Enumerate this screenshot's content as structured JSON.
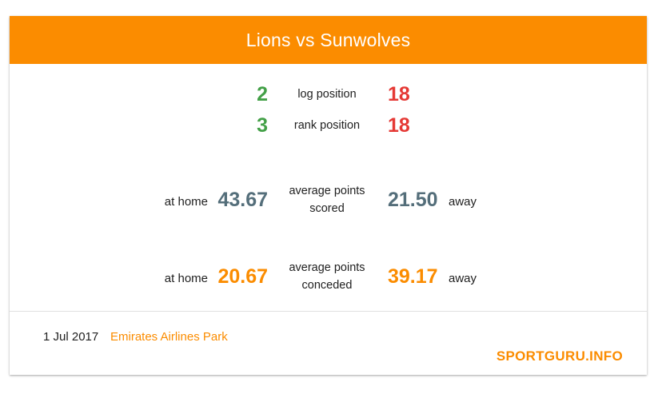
{
  "match": {
    "title": "Lions vs Sunwolves"
  },
  "positions": [
    {
      "label": "log position",
      "home": "2",
      "away": "18"
    },
    {
      "label": "rank position",
      "home": "3",
      "away": "18"
    }
  ],
  "scored": {
    "label_line1": "average points",
    "label_line2": "scored",
    "home_label": "at home",
    "home_value": "43.67",
    "away_value": "21.50",
    "away_label": "away"
  },
  "conceded": {
    "label_line1": "average points",
    "label_line2": "conceded",
    "home_label": "at home",
    "home_value": "20.67",
    "away_value": "39.17",
    "away_label": "away"
  },
  "footer": {
    "date": "1 Jul 2017",
    "venue": "Emirates Airlines Park",
    "brand": "SPORTGURU.INFO"
  },
  "colors": {
    "accent": "#fb8c00",
    "home_rank": "#43a047",
    "away_rank": "#e53935",
    "scored_value": "#546e7a"
  }
}
